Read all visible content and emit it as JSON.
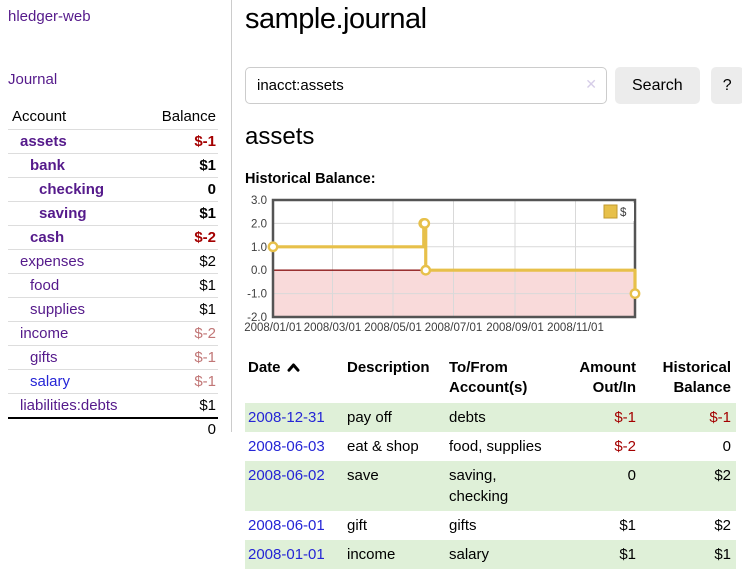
{
  "app": {
    "brand": "hledger-web",
    "nav_journal": "Journal"
  },
  "colors": {
    "link_purple": "#551a8b",
    "link_blue": "#2525d6",
    "negative_strong": "#a40000",
    "negative_light": "#c17676",
    "row_stripe_green": "#dff0d8",
    "chart_series_gold": "#e7c04a",
    "chart_negative_region": "#f9dada",
    "chart_zero_line": "#8c1717"
  },
  "sidebar": {
    "header": {
      "account": "Account",
      "balance": "Balance"
    },
    "accounts": [
      {
        "name": "assets",
        "balance": "$-1",
        "depth": 0
      },
      {
        "name": "bank",
        "balance": "$1",
        "depth": 1
      },
      {
        "name": "checking",
        "balance": "0",
        "depth": 2
      },
      {
        "name": "saving",
        "balance": "$1",
        "depth": 2
      },
      {
        "name": "cash",
        "balance": "$-2",
        "depth": 1
      },
      {
        "name": "expenses",
        "balance": "$2",
        "depth": 0
      },
      {
        "name": "food",
        "balance": "$1",
        "depth": 1
      },
      {
        "name": "supplies",
        "balance": "$1",
        "depth": 1
      },
      {
        "name": "income",
        "balance": "$-2",
        "depth": 0
      },
      {
        "name": "gifts",
        "balance": "$-1",
        "depth": 1
      },
      {
        "name": "salary",
        "balance": "$-1",
        "depth": 1
      },
      {
        "name": "liabilities:debts",
        "balance": "$1",
        "depth": 0
      }
    ],
    "total": "0"
  },
  "main": {
    "title": "sample.journal",
    "search": {
      "value": "inacct:assets",
      "clear_icon": "✕",
      "button": "Search",
      "help": "?"
    },
    "account_heading": "assets",
    "chart_label": "Historical Balance:"
  },
  "chart_data": {
    "type": "line",
    "style": "step-after",
    "title": "Historical Balance",
    "series": [
      {
        "name": "$",
        "color": "#e7c04a",
        "points": [
          [
            "2008-01-01",
            1
          ],
          [
            "2008-06-01",
            2
          ],
          [
            "2008-06-02",
            2
          ],
          [
            "2008-06-03",
            0
          ],
          [
            "2008-12-31",
            -1
          ]
        ]
      }
    ],
    "x_start": "2008-01-01",
    "x_end": "2008-12-31",
    "xtick_labels": [
      "2008/01/01",
      "2008/03/01",
      "2008/05/01",
      "2008/07/01",
      "2008/09/01",
      "2008/11/01"
    ],
    "ylim": [
      -2,
      3
    ],
    "ytick_values": [
      3,
      2,
      1,
      0,
      -1,
      -2
    ],
    "ytick_labels": [
      "3.0",
      "2.0",
      "1.0",
      "0.0",
      "-1.0",
      "-2.0"
    ],
    "grid": true,
    "legend": {
      "label": "$",
      "position": "top-right"
    },
    "negative_region_color": "#f9dada",
    "zero_line_color": "#8c1717",
    "marker": "open-circle"
  },
  "register": {
    "columns": [
      "Date",
      "Description",
      "To/From Account(s)",
      "Amount Out/In",
      "Historical Balance"
    ],
    "sort": "ascending",
    "rows": [
      {
        "date": "2008-12-31",
        "description": "pay off",
        "accounts": "debts",
        "amount": "$-1",
        "balance": "$-1"
      },
      {
        "date": "2008-06-03",
        "description": "eat & shop",
        "accounts": "food, supplies",
        "amount": "$-2",
        "balance": "0"
      },
      {
        "date": "2008-06-02",
        "description": "save",
        "accounts": "saving, checking",
        "amount": "0",
        "balance": "$2"
      },
      {
        "date": "2008-06-01",
        "description": "gift",
        "accounts": "gifts",
        "amount": "$1",
        "balance": "$2"
      },
      {
        "date": "2008-01-01",
        "description": "income",
        "accounts": "salary",
        "amount": "$1",
        "balance": "$1"
      }
    ]
  }
}
